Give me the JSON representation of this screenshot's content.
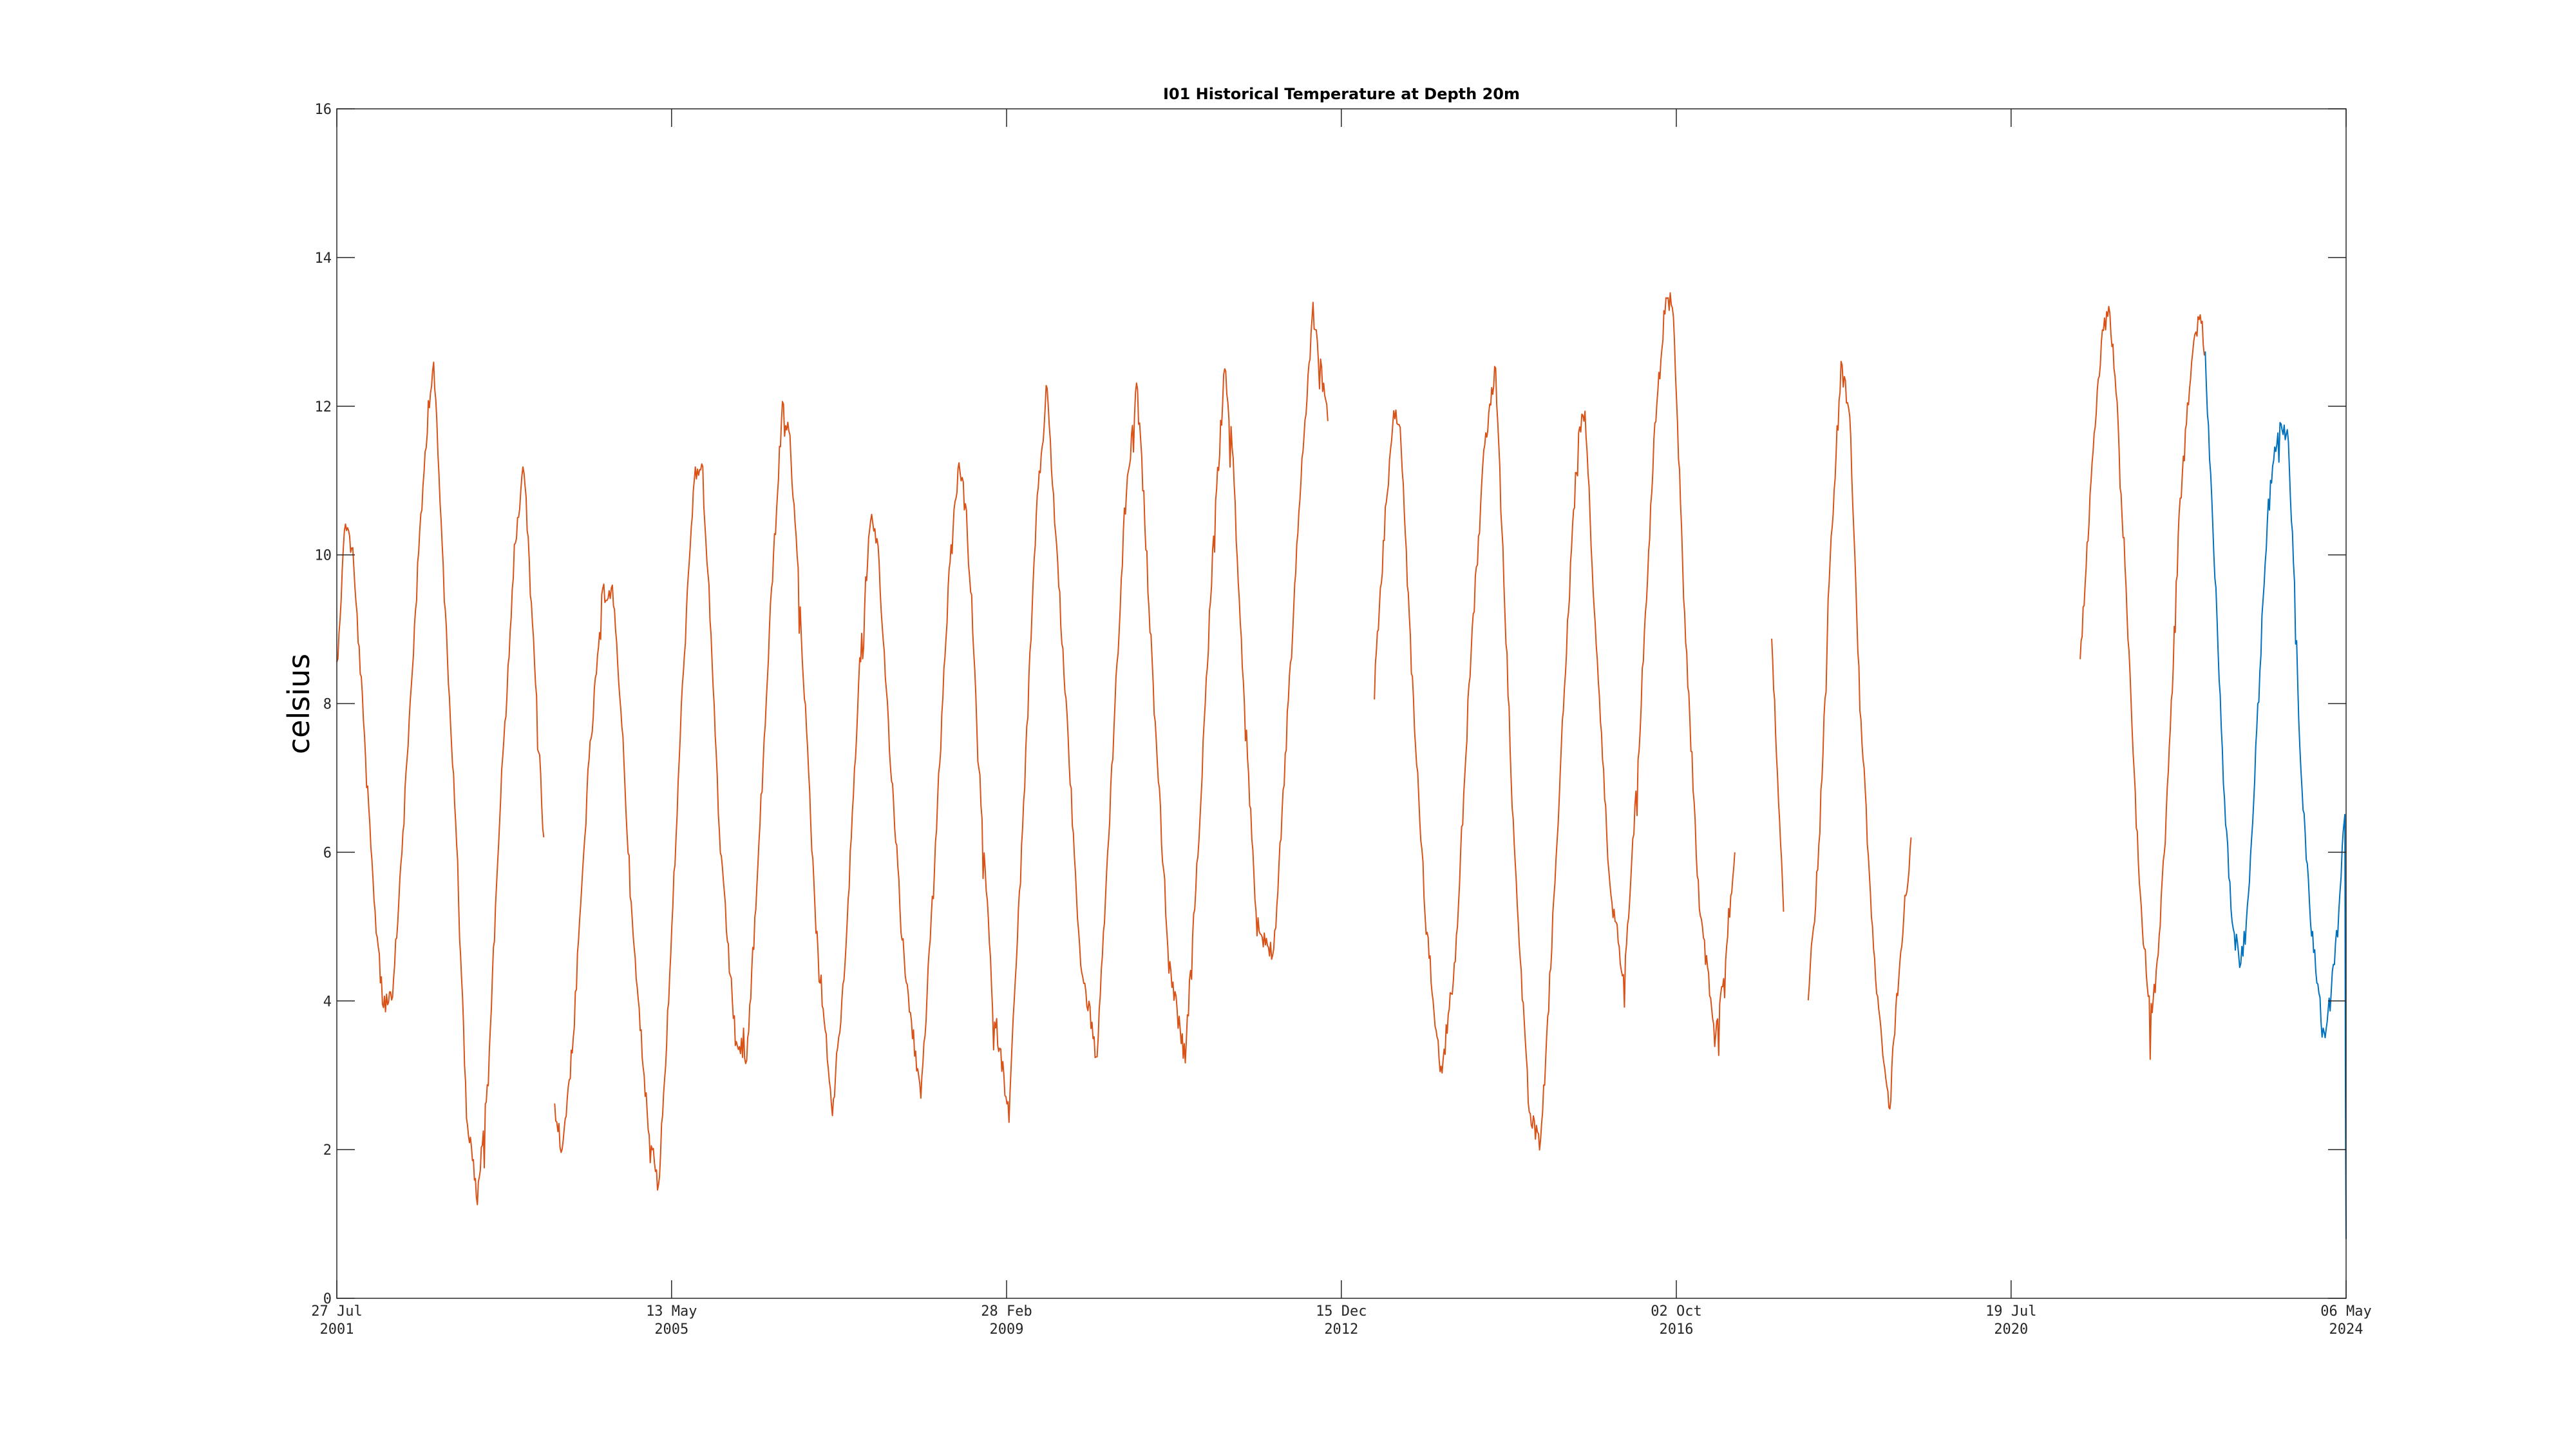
{
  "chart_data": {
    "type": "line",
    "title": "I01 Historical Temperature at Depth 20m",
    "xlabel": "",
    "ylabel": "celsius",
    "ylim": [
      0,
      16
    ],
    "yticks": [
      0,
      2,
      4,
      6,
      8,
      10,
      12,
      14,
      16
    ],
    "xlim": [
      "2001-07-27",
      "2024-05-06"
    ],
    "xticks": [
      {
        "date": "2001-07-27",
        "line1": "27 Jul",
        "line2": "2001"
      },
      {
        "date": "2005-05-13",
        "line1": "13 May",
        "line2": "2005"
      },
      {
        "date": "2009-02-28",
        "line1": "28 Feb",
        "line2": "2009"
      },
      {
        "date": "2012-12-15",
        "line1": "15 Dec",
        "line2": "2012"
      },
      {
        "date": "2016-10-02",
        "line1": "02 Oct",
        "line2": "2016"
      },
      {
        "date": "2020-07-19",
        "line1": "19 Jul",
        "line2": "2020"
      },
      {
        "date": "2024-05-06",
        "line1": "06 May",
        "line2": "2024"
      }
    ],
    "grid": false,
    "series": [
      {
        "color": "#D95319",
        "segments": [
          {
            "x": [
              "2001-07-27",
              "2001-09-01",
              "2001-10-01",
              "2001-11-01",
              "2001-12-15",
              "2002-02-01",
              "2002-03-15",
              "2002-05-01",
              "2002-07-01",
              "2002-08-10",
              "2002-09-01",
              "2002-10-15",
              "2002-12-01",
              "2003-01-15",
              "2003-03-01",
              "2003-04-15",
              "2003-06-01",
              "2003-08-01",
              "2003-09-10",
              "2003-10-15",
              "2003-12-01"
            ],
            "y": [
              8.5,
              10.5,
              10.0,
              8.5,
              6.0,
              4.0,
              4.0,
              6.5,
              10.0,
              12.0,
              12.6,
              9.5,
              6.5,
              2.5,
              1.3,
              3.0,
              6.5,
              10.0,
              11.2,
              9.0,
              6.2
            ]
          },
          {
            "x": [
              "2004-01-15",
              "2004-02-15",
              "2004-04-01",
              "2004-06-01",
              "2004-08-01",
              "2004-09-10",
              "2004-10-15",
              "2004-12-01",
              "2005-02-01",
              "2005-03-20",
              "2005-05-01",
              "2005-07-01",
              "2005-08-15",
              "2005-09-15",
              "2005-10-15",
              "2005-12-01",
              "2006-02-01",
              "2006-03-20",
              "2006-05-01",
              "2006-07-01",
              "2006-08-15",
              "2006-09-15",
              "2006-11-01",
              "2007-01-01",
              "2007-03-10",
              "2007-05-01",
              "2007-07-01",
              "2007-08-15",
              "2007-09-15",
              "2007-11-01",
              "2008-01-01",
              "2008-03-10",
              "2008-05-01",
              "2008-07-01",
              "2008-08-15",
              "2008-09-15",
              "2008-11-01",
              "2009-01-01",
              "2009-03-10",
              "2009-05-01",
              "2009-07-01",
              "2009-08-15",
              "2009-09-15",
              "2009-11-01",
              "2010-01-01",
              "2010-03-10",
              "2010-05-01",
              "2010-07-01",
              "2010-08-20",
              "2010-09-15",
              "2010-11-01",
              "2011-01-01",
              "2011-03-10",
              "2011-05-01",
              "2011-07-01",
              "2011-08-20",
              "2011-09-20",
              "2011-11-01",
              "2012-01-01",
              "2012-03-10",
              "2012-05-01",
              "2012-07-01",
              "2012-08-20",
              "2012-09-20",
              "2012-10-20"
            ],
            "y": [
              2.5,
              2.0,
              3.5,
              7.0,
              9.5,
              9.5,
              8.0,
              5.0,
              2.5,
              1.5,
              4.0,
              8.5,
              11.0,
              11.3,
              9.5,
              6.0,
              3.5,
              3.2,
              5.5,
              9.5,
              12.0,
              11.5,
              9.0,
              5.0,
              2.5,
              4.5,
              8.5,
              10.5,
              10.0,
              7.5,
              4.5,
              2.7,
              5.5,
              9.5,
              11.3,
              10.5,
              7.5,
              4.0,
              2.5,
              6.0,
              10.5,
              12.3,
              10.5,
              8.0,
              4.5,
              3.2,
              6.5,
              10.5,
              12.3,
              11.0,
              8.0,
              4.5,
              3.2,
              6.0,
              10.0,
              12.5,
              11.5,
              8.5,
              5.0,
              4.6,
              7.5,
              11.0,
              13.3,
              12.5,
              11.8
            ]
          },
          {
            "x": [
              "2013-05-01",
              "2013-06-15",
              "2013-07-20",
              "2013-08-20",
              "2013-10-01",
              "2013-12-01",
              "2014-02-01",
              "2014-04-01",
              "2014-06-01",
              "2014-08-01",
              "2014-09-15",
              "2014-10-15",
              "2014-12-01",
              "2015-02-01",
              "2015-03-20",
              "2015-05-01",
              "2015-07-01",
              "2015-08-20",
              "2015-09-20",
              "2015-11-01",
              "2016-01-01",
              "2016-03-01",
              "2016-05-01",
              "2016-07-01",
              "2016-08-20",
              "2016-09-20",
              "2016-11-01",
              "2017-01-01",
              "2017-03-10",
              "2017-04-20",
              "2017-06-01"
            ],
            "y": [
              8.2,
              10.5,
              12.0,
              11.5,
              8.5,
              5.0,
              3.0,
              4.5,
              8.5,
              11.5,
              12.5,
              10.0,
              6.0,
              2.5,
              2.0,
              4.5,
              8.5,
              11.5,
              12.0,
              9.0,
              5.5,
              4.3,
              7.5,
              11.5,
              13.5,
              13.3,
              9.5,
              5.5,
              3.5,
              4.5,
              6.0
            ]
          },
          {
            "x": [
              "2017-11-01",
              "2017-11-25",
              "2017-12-20"
            ],
            "y": [
              9.0,
              7.0,
              5.2
            ]
          },
          {
            "x": [
              "2018-04-01",
              "2018-05-15",
              "2018-07-01",
              "2018-08-15",
              "2018-09-20",
              "2018-11-01",
              "2019-01-01",
              "2019-03-01",
              "2019-04-15",
              "2019-06-01"
            ],
            "y": [
              4.0,
              6.0,
              10.0,
              12.5,
              12.0,
              8.0,
              4.5,
              2.5,
              4.5,
              6.2
            ]
          },
          {
            "x": [
              "2021-05-01",
              "2021-06-15",
              "2021-08-01",
              "2021-09-01",
              "2021-10-01",
              "2021-11-15",
              "2022-01-01",
              "2022-02-15",
              "2022-03-20",
              "2022-05-01",
              "2022-06-15",
              "2022-08-01",
              "2022-09-10",
              "2022-10-01"
            ],
            "y": [
              8.5,
              11.0,
              13.0,
              13.3,
              12.0,
              9.0,
              5.5,
              3.8,
              4.5,
              7.0,
              10.5,
              12.5,
              13.3,
              12.7
            ]
          }
        ]
      },
      {
        "color": "#0072BD",
        "segments": [
          {
            "x": [
              "2022-10-01",
              "2022-11-01",
              "2022-12-15",
              "2023-01-20",
              "2023-02-25",
              "2023-03-20",
              "2023-04-15",
              "2023-05-15",
              "2023-06-15",
              "2023-07-20",
              "2023-08-15",
              "2023-09-10",
              "2023-10-01",
              "2023-11-01",
              "2023-12-15",
              "2024-02-01",
              "2024-03-01",
              "2024-04-01",
              "2024-04-20",
              "2024-05-01",
              "2024-05-03",
              "2024-05-06"
            ],
            "y": [
              12.6,
              10.5,
              7.0,
              5.0,
              4.5,
              5.0,
              6.5,
              8.5,
              10.5,
              11.5,
              11.8,
              11.5,
              10.0,
              7.0,
              5.0,
              3.5,
              4.0,
              5.0,
              6.0,
              6.5,
              3.0,
              0.8
            ]
          }
        ]
      }
    ]
  }
}
